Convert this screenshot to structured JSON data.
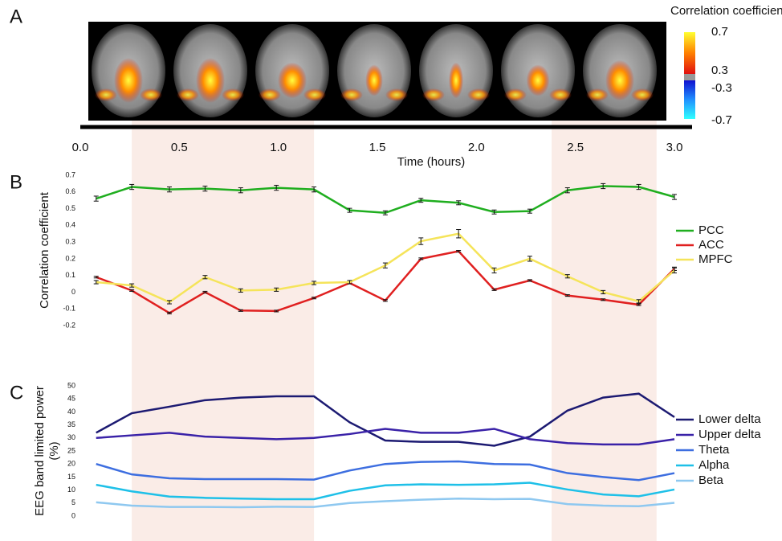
{
  "chart_data": [
    {
      "type": "brain-strip",
      "label": "A",
      "colorbar_title": "Correlation coefficient",
      "colorbar_ticks": [
        0.7,
        0.3,
        -0.3,
        -0.7
      ],
      "xlabel": "Time (hours)",
      "xlim": [
        0,
        3
      ],
      "xticks": [
        {
          "value": 0,
          "label": "0.0"
        },
        0.5,
        {
          "value": 1,
          "label": "1.0"
        },
        1.5,
        {
          "value": 2,
          "label": "2.0"
        },
        2.5,
        {
          "value": 3,
          "label": "3.0"
        }
      ],
      "shaded": [
        [
          0.26,
          1.18
        ],
        [
          2.38,
          2.91
        ]
      ]
    },
    {
      "type": "line",
      "label": "B",
      "ylabel": "Correlation coefficient",
      "x": [
        0.08,
        0.26,
        0.45,
        0.63,
        0.81,
        0.99,
        1.18,
        1.36,
        1.54,
        1.72,
        1.91,
        2.09,
        2.27,
        2.46,
        2.64,
        2.82,
        3.0
      ],
      "ylim": [
        -0.2,
        0.7
      ],
      "yticks": [
        0.7,
        0.6,
        0.5,
        0.4,
        0.3,
        0.2,
        0.1,
        0,
        -0.1,
        -0.2
      ],
      "series": [
        {
          "name": "PCC",
          "color": "#1fae1f",
          "values": [
            0.56,
            0.63,
            0.615,
            0.62,
            0.61,
            0.625,
            0.615,
            0.49,
            0.475,
            0.55,
            0.535,
            0.48,
            0.485,
            0.61,
            0.635,
            0.63,
            0.57
          ],
          "errors": [
            0.015,
            0.015,
            0.015,
            0.015,
            0.015,
            0.015,
            0.015,
            0.012,
            0.012,
            0.012,
            0.012,
            0.012,
            0.012,
            0.015,
            0.015,
            0.015,
            0.015
          ]
        },
        {
          "name": "ACC",
          "color": "#e02020",
          "values": [
            0.09,
            0.01,
            -0.125,
            0.0,
            -0.11,
            -0.113,
            -0.035,
            0.055,
            -0.05,
            0.2,
            0.245,
            0.015,
            0.07,
            -0.02,
            -0.045,
            -0.075,
            0.14
          ],
          "errors": [
            0.005,
            0.005,
            0.005,
            0.005,
            0.005,
            0.005,
            0.005,
            0.005,
            0.005,
            0.005,
            0.005,
            0.005,
            0.005,
            0.005,
            0.005,
            0.005,
            0.01
          ]
        },
        {
          "name": "MPFC",
          "color": "#f5e45a",
          "values": [
            0.06,
            0.04,
            -0.06,
            0.09,
            0.01,
            0.015,
            0.055,
            0.06,
            0.16,
            0.305,
            0.35,
            0.13,
            0.2,
            0.095,
            0.0,
            -0.055,
            0.13
          ],
          "errors": [
            0.01,
            0.01,
            0.01,
            0.01,
            0.01,
            0.01,
            0.01,
            0.01,
            0.015,
            0.02,
            0.025,
            0.015,
            0.015,
            0.01,
            0.01,
            0.01,
            0.015
          ]
        }
      ]
    },
    {
      "type": "line",
      "label": "C",
      "ylabel": [
        "EEG band limited power",
        "(%)"
      ],
      "x": [
        0.08,
        0.26,
        0.45,
        0.63,
        0.81,
        0.99,
        1.18,
        1.36,
        1.54,
        1.72,
        1.91,
        2.09,
        2.27,
        2.46,
        2.64,
        2.82,
        3.0
      ],
      "ylim": [
        0,
        50
      ],
      "yticks": [
        50,
        45,
        40,
        35,
        30,
        25,
        20,
        15,
        10,
        5,
        0
      ],
      "series": [
        {
          "name": "Lower delta",
          "color": "#1c1a72",
          "values": [
            32,
            39.5,
            42,
            44.5,
            45.5,
            46,
            46,
            36,
            29,
            28.5,
            28.5,
            27,
            30.5,
            40.5,
            45.5,
            47,
            38
          ]
        },
        {
          "name": "Upper delta",
          "color": "#3a22a8",
          "values": [
            30,
            31,
            32,
            30.5,
            30,
            29.5,
            30,
            31.5,
            33.5,
            32,
            32,
            33.5,
            29.5,
            28,
            27.5,
            27.5,
            29.5
          ]
        },
        {
          "name": "Theta",
          "color": "#3d6ee0",
          "values": [
            20,
            16,
            14.5,
            14.2,
            14.2,
            14.2,
            14,
            17.5,
            20,
            20.8,
            21,
            20,
            19.8,
            16.5,
            15,
            13.8,
            16.5
          ]
        },
        {
          "name": "Alpha",
          "color": "#1ec0e8",
          "values": [
            12,
            9.5,
            7.5,
            7,
            6.7,
            6.5,
            6.5,
            9.7,
            11.8,
            12.2,
            12,
            12.2,
            12.8,
            10.2,
            8.3,
            7.6,
            10.2
          ]
        },
        {
          "name": "Beta",
          "color": "#8ec8f0",
          "values": [
            5.3,
            4,
            3.5,
            3.5,
            3.4,
            3.6,
            3.5,
            5,
            5.7,
            6.3,
            6.7,
            6.5,
            6.6,
            4.6,
            4,
            3.8,
            5.1
          ]
        }
      ]
    }
  ]
}
